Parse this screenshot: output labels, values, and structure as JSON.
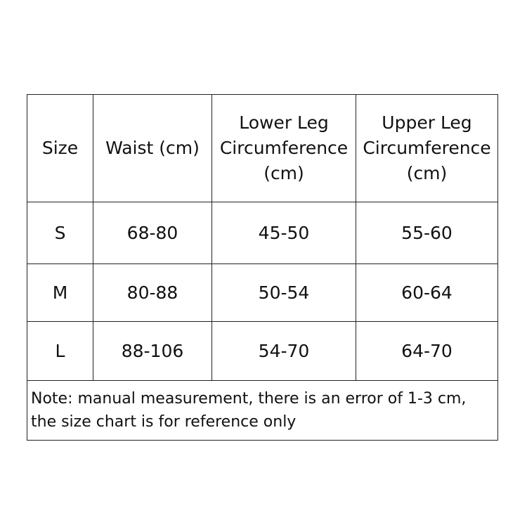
{
  "table": {
    "headers": [
      [
        "Size"
      ],
      [
        "Waist (cm)"
      ],
      [
        "Lower Leg",
        "Circumference",
        "(cm)"
      ],
      [
        "Upper Leg",
        "Circumference",
        "(cm)"
      ]
    ],
    "rows": [
      [
        "S",
        "68-80",
        "45-50",
        "55-60"
      ],
      [
        "M",
        "80-88",
        "50-54",
        "60-64"
      ],
      [
        "L",
        "88-106",
        "54-70",
        "64-70"
      ]
    ],
    "note": [
      "Note: manual measurement, there is an error of 1-3 cm,",
      "the size chart is for reference only"
    ]
  }
}
